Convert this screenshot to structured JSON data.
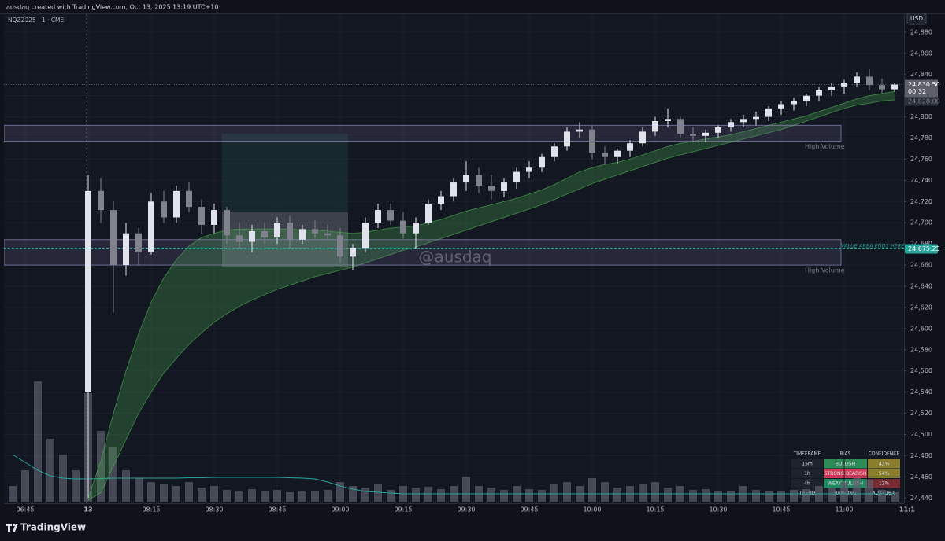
{
  "header": "ausdaq created with TradingView.com, Oct 13, 2025 13:19 UTC+10",
  "brand": "TradingView",
  "chart_data": {
    "type": "candlestick",
    "symbol": "NQZ2025 · 1 · CME",
    "currency": "USD",
    "watermark": "@ausdaq",
    "x": [
      "06:42",
      "06:45",
      "06:48",
      "06:51",
      "06:54",
      "06:57",
      "08:00",
      "08:03",
      "08:06",
      "08:09",
      "08:12",
      "08:15",
      "08:18",
      "08:21",
      "08:24",
      "08:27",
      "08:30",
      "08:33",
      "08:36",
      "08:39",
      "08:42",
      "08:45",
      "08:48",
      "08:51",
      "08:54",
      "08:57",
      "09:00",
      "09:03",
      "09:06",
      "09:09",
      "09:12",
      "09:15",
      "09:18",
      "09:21",
      "09:24",
      "09:27",
      "09:30",
      "09:33",
      "09:36",
      "09:39",
      "09:42",
      "09:45",
      "09:48",
      "09:51",
      "09:54",
      "09:57",
      "10:00",
      "10:03",
      "10:06",
      "10:09",
      "10:12",
      "10:15",
      "10:18",
      "10:21",
      "10:24",
      "10:27",
      "10:30",
      "10:33",
      "10:36",
      "10:39",
      "10:42",
      "10:45",
      "10:48",
      "10:51",
      "10:54",
      "10:57",
      "11:00",
      "11:03",
      "11:06",
      "11:09",
      "11:12"
    ],
    "candles": [
      null,
      null,
      null,
      null,
      null,
      null,
      [
        24540,
        24745,
        24440,
        24730
      ],
      [
        24730,
        24742,
        24700,
        24712
      ],
      [
        24712,
        24720,
        24615,
        24660
      ],
      [
        24660,
        24700,
        24650,
        24690
      ],
      [
        24690,
        24695,
        24660,
        24672
      ],
      [
        24672,
        24728,
        24670,
        24720
      ],
      [
        24720,
        24730,
        24700,
        24705
      ],
      [
        24705,
        24735,
        24700,
        24730
      ],
      [
        24730,
        24738,
        24710,
        24715
      ],
      [
        24715,
        24722,
        24690,
        24698
      ],
      [
        24698,
        24718,
        24690,
        24712
      ],
      [
        24712,
        24715,
        24680,
        24688
      ],
      [
        24688,
        24700,
        24675,
        24682
      ],
      [
        24682,
        24698,
        24672,
        24692
      ],
      [
        24692,
        24700,
        24680,
        24686
      ],
      [
        24686,
        24705,
        24680,
        24700
      ],
      [
        24700,
        24706,
        24675,
        24684
      ],
      [
        24684,
        24698,
        24680,
        24694
      ],
      [
        24694,
        24702,
        24685,
        24690
      ],
      [
        24690,
        24698,
        24684,
        24688
      ],
      [
        24688,
        24695,
        24662,
        24668
      ],
      [
        24668,
        24680,
        24655,
        24676
      ],
      [
        24676,
        24705,
        24672,
        24700
      ],
      [
        24700,
        24718,
        24695,
        24712
      ],
      [
        24712,
        24718,
        24698,
        24702
      ],
      [
        24702,
        24710,
        24685,
        24690
      ],
      [
        24690,
        24705,
        24675,
        24700
      ],
      [
        24700,
        24722,
        24698,
        24718
      ],
      [
        24718,
        24730,
        24712,
        24725
      ],
      [
        24725,
        24742,
        24720,
        24738
      ],
      [
        24738,
        24758,
        24730,
        24745
      ],
      [
        24745,
        24752,
        24728,
        24735
      ],
      [
        24735,
        24745,
        24722,
        24730
      ],
      [
        24730,
        24742,
        24724,
        24738
      ],
      [
        24738,
        24752,
        24732,
        24748
      ],
      [
        24748,
        24758,
        24742,
        24752
      ],
      [
        24752,
        24765,
        24748,
        24762
      ],
      [
        24762,
        24775,
        24758,
        24772
      ],
      [
        24772,
        24790,
        24768,
        24786
      ],
      [
        24786,
        24795,
        24780,
        24788
      ],
      [
        24788,
        24792,
        24760,
        24766
      ],
      [
        24766,
        24772,
        24755,
        24762
      ],
      [
        24762,
        24770,
        24756,
        24768
      ],
      [
        24768,
        24778,
        24762,
        24775
      ],
      [
        24775,
        24790,
        24772,
        24786
      ],
      [
        24786,
        24800,
        24782,
        24796
      ],
      [
        24796,
        24808,
        24790,
        24798
      ],
      [
        24798,
        24800,
        24780,
        24784
      ],
      [
        24784,
        24790,
        24776,
        24782
      ],
      [
        24782,
        24788,
        24776,
        24785
      ],
      [
        24785,
        24792,
        24780,
        24790
      ],
      [
        24790,
        24798,
        24786,
        24795
      ],
      [
        24795,
        24802,
        24790,
        24798
      ],
      [
        24798,
        24805,
        24792,
        24800
      ],
      [
        24800,
        24810,
        24796,
        24808
      ],
      [
        24808,
        24815,
        24802,
        24812
      ],
      [
        24812,
        24818,
        24806,
        24815
      ],
      [
        24815,
        24822,
        24810,
        24820
      ],
      [
        24820,
        24828,
        24815,
        24825
      ],
      [
        24825,
        24832,
        24820,
        24828
      ],
      [
        24828,
        24835,
        24822,
        24832
      ],
      [
        24832,
        24842,
        24828,
        24838
      ],
      [
        24838,
        24845,
        24825,
        24830
      ],
      [
        24830,
        24836,
        24822,
        24826
      ],
      [
        24826,
        24832,
        24824,
        24830.5
      ]
    ],
    "band_upper": [
      null,
      null,
      null,
      null,
      null,
      null,
      24440,
      24475,
      24520,
      24560,
      24595,
      24625,
      24648,
      24665,
      24678,
      24686,
      24690,
      24693,
      24694,
      24694,
      24694,
      24694,
      24694,
      24693,
      24693,
      24692,
      24691,
      24690,
      24691,
      24693,
      24695,
      24696,
      24697,
      24700,
      24703,
      24707,
      24711,
      24714,
      24717,
      24720,
      24723,
      24727,
      24731,
      24736,
      24742,
      24748,
      24752,
      24755,
      24757,
      24760,
      24764,
      24768,
      24772,
      24775,
      24777,
      24779,
      24781,
      24783,
      24786,
      24789,
      24792,
      24795,
      24798,
      24801,
      24805,
      24809,
      24813,
      24817,
      24820,
      24822,
      24824
    ],
    "band_lower": [
      null,
      null,
      null,
      null,
      null,
      null,
      24438,
      24445,
      24470,
      24495,
      24520,
      24540,
      24558,
      24572,
      24585,
      24596,
      24606,
      24614,
      24621,
      24627,
      24632,
      24637,
      24641,
      24645,
      24649,
      24652,
      24655,
      24658,
      24662,
      24666,
      24670,
      24674,
      24677,
      24681,
      24685,
      24689,
      24693,
      24697,
      24701,
      24705,
      24709,
      24713,
      24717,
      24722,
      24727,
      24732,
      24737,
      24741,
      24745,
      24749,
      24753,
      24757,
      24761,
      24764,
      24767,
      24770,
      24773,
      24776,
      24779,
      24782,
      24785,
      24788,
      24792,
      24796,
      24800,
      24804,
      24808,
      24811,
      24813,
      24815,
      24816
    ],
    "volume": [
      200,
      400,
      1530,
      800,
      600,
      400,
      1380,
      900,
      700,
      400,
      300,
      250,
      220,
      200,
      250,
      180,
      200,
      150,
      130,
      160,
      140,
      150,
      120,
      130,
      140,
      150,
      250,
      200,
      180,
      220,
      150,
      200,
      180,
      190,
      160,
      200,
      320,
      200,
      180,
      150,
      200,
      160,
      150,
      220,
      250,
      200,
      300,
      250,
      180,
      200,
      220,
      250,
      180,
      200,
      150,
      160,
      140,
      130,
      200,
      150,
      130,
      140,
      150,
      160,
      200,
      180,
      250,
      300,
      280,
      150,
      120
    ],
    "volume_ma": [
      600,
      500,
      400,
      330,
      300,
      290,
      290,
      295,
      300,
      300,
      300,
      300,
      300,
      300,
      305,
      305,
      310,
      310,
      310,
      310,
      310,
      310,
      305,
      300,
      290,
      250,
      200,
      160,
      130,
      120,
      110,
      100,
      100,
      100,
      100,
      100,
      100,
      100,
      100,
      100,
      100,
      100,
      100,
      100,
      100,
      100,
      100,
      100,
      100,
      100,
      100,
      100,
      100,
      100,
      100,
      100,
      100,
      100,
      100,
      100,
      100,
      100,
      100,
      100,
      100,
      100,
      100,
      100,
      100,
      100,
      100
    ],
    "ylim": [
      24435,
      24897
    ],
    "yticks": [
      {
        "value": 24880,
        "label": "24,880"
      },
      {
        "value": 24860,
        "label": "24,860"
      },
      {
        "value": 24840,
        "label": "24,840"
      },
      {
        "value": 24820,
        "label": "24,820"
      },
      {
        "value": 24800,
        "label": "24,800"
      },
      {
        "value": 24780,
        "label": "24,780"
      },
      {
        "value": 24760,
        "label": "24,760"
      },
      {
        "value": 24740,
        "label": "24,740"
      },
      {
        "value": 24720,
        "label": "24,720"
      },
      {
        "value": 24700,
        "label": "24,700"
      },
      {
        "value": 24680,
        "label": "24,680"
      },
      {
        "value": 24660,
        "label": "24,660"
      },
      {
        "value": 24640,
        "label": "24,640"
      },
      {
        "value": 24620,
        "label": "24,620"
      },
      {
        "value": 24600,
        "label": "24,600"
      },
      {
        "value": 24580,
        "label": "24,580"
      },
      {
        "value": 24560,
        "label": "24,560"
      },
      {
        "value": 24540,
        "label": "24,540"
      },
      {
        "value": 24520,
        "label": "24,520"
      },
      {
        "value": 24500,
        "label": "24,500"
      },
      {
        "value": 24480,
        "label": "24,480"
      },
      {
        "value": 24460,
        "label": "24,460"
      },
      {
        "value": 24440,
        "label": "24,440"
      }
    ],
    "xticks": [
      "06:45",
      {
        "value": "08:00",
        "label": "13"
      },
      "08:15",
      "08:30",
      "08:45",
      "09:00",
      "09:15",
      "09:30",
      "09:45",
      "10:00",
      "10:15",
      "10:30",
      "10:45",
      "11:00",
      {
        "value": "11:15",
        "label": "11:1"
      }
    ],
    "last_price": {
      "value": 24830.5,
      "label": "24,830.50",
      "countdown": "00:32"
    },
    "prev_price": {
      "value": 24828,
      "label": "24,828.00"
    },
    "level": {
      "value": 24675.25,
      "label": "24,675.25",
      "note": "VALUE AREA ENDS HERE"
    },
    "zones": [
      {
        "low": 24777,
        "high": 24792,
        "label": "High Volume"
      },
      {
        "low": 24660,
        "high": 24684,
        "label": "High Volume"
      }
    ],
    "boxes": [
      {
        "from": "08:30",
        "to": "09:00",
        "low": 24710,
        "high": 24784
      },
      {
        "from": "08:30",
        "to": "09:00",
        "low": 24658,
        "high": 24710
      }
    ],
    "colors": {
      "up": "#e0e3eb",
      "down": "#80838e",
      "band": "#4caf50",
      "volume": "#5d606b",
      "volume_ma": "#26a69a",
      "level": "#26a69a"
    }
  },
  "table": {
    "header": [
      "TIMEFRAME",
      "BIAS",
      "CONFIDENCE"
    ],
    "rows": [
      [
        "15m",
        "BULLISH",
        "43%"
      ],
      [
        "1h",
        "STRONG BEARISH",
        "54%"
      ],
      [
        "4h",
        "WEAK BULLISH",
        "12%"
      ],
      [
        "TREND",
        "RANGING",
        "ADX: 16.6"
      ]
    ]
  }
}
